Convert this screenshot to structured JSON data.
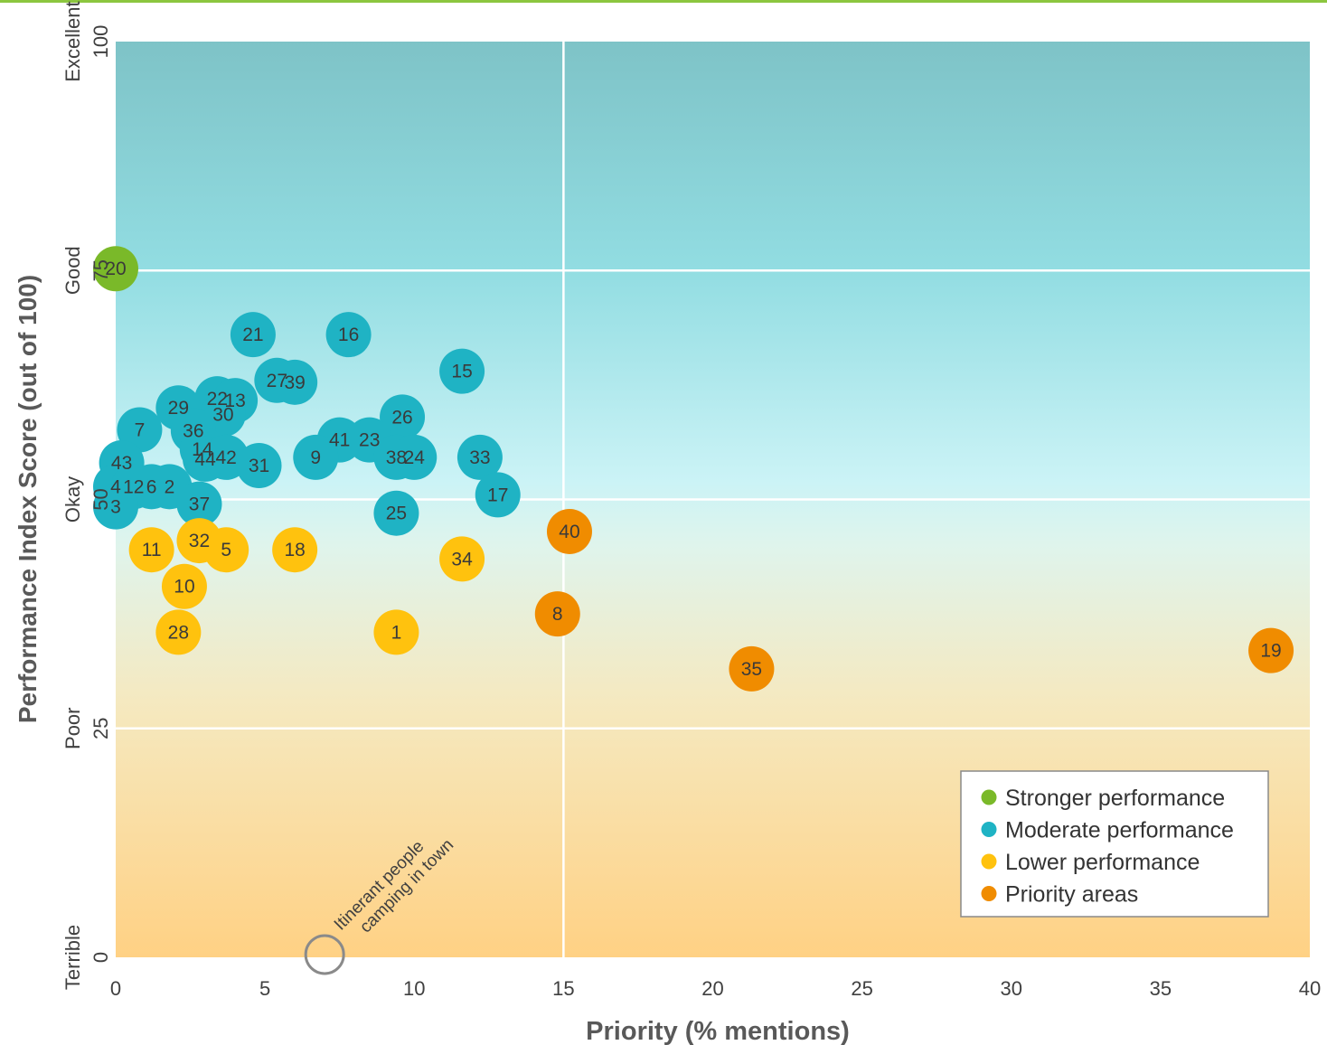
{
  "colors": {
    "stronger": "#7ab929",
    "moderate": "#1fb3c4",
    "lower": "#ffc20e",
    "priority": "#f08c00",
    "annotation_ring": "#8a8a8a",
    "gridline": "#ffffff"
  },
  "chart_data": {
    "type": "scatter",
    "xlabel": "Priority (% mentions)",
    "ylabel": "Performance Index Score (out of 100)",
    "xlim": [
      0,
      40
    ],
    "ylim": [
      0,
      100
    ],
    "x_ticks": [
      "0",
      "5",
      "10",
      "15",
      "20",
      "25",
      "30",
      "35",
      "40"
    ],
    "y_ticks": [
      {
        "value": 0,
        "num": "0",
        "word": "Terrible"
      },
      {
        "value": 25,
        "num": "25",
        "word": "Poor"
      },
      {
        "value": 50,
        "num": "50",
        "word": "Okay"
      },
      {
        "value": 75,
        "num": "75",
        "word": "Good"
      },
      {
        "value": 100,
        "num": "100",
        "word": "Excellent"
      }
    ],
    "gridlines": {
      "x": [
        15
      ],
      "y": [
        25,
        50,
        75
      ]
    },
    "legend": {
      "placement": "bottom-right",
      "items": [
        {
          "label": "Stronger performance",
          "group": "stronger"
        },
        {
          "label": "Moderate performance",
          "group": "moderate"
        },
        {
          "label": "Lower performance",
          "group": "lower"
        },
        {
          "label": "Priority areas",
          "group": "priority"
        }
      ]
    },
    "points": [
      {
        "label": "20",
        "x": 0.0,
        "y": 75.2,
        "group": "stronger"
      },
      {
        "label": "21",
        "x": 4.6,
        "y": 68.0,
        "group": "moderate"
      },
      {
        "label": "16",
        "x": 7.8,
        "y": 68.0,
        "group": "moderate"
      },
      {
        "label": "15",
        "x": 11.6,
        "y": 64.0,
        "group": "moderate"
      },
      {
        "label": "27",
        "x": 5.4,
        "y": 63.0,
        "group": "moderate"
      },
      {
        "label": "39",
        "x": 6.0,
        "y": 62.8,
        "group": "moderate"
      },
      {
        "label": "22",
        "x": 3.4,
        "y": 61.0,
        "group": "moderate"
      },
      {
        "label": "13",
        "x": 4.0,
        "y": 60.8,
        "group": "moderate"
      },
      {
        "label": "29",
        "x": 2.1,
        "y": 60.0,
        "group": "moderate"
      },
      {
        "label": "30",
        "x": 3.6,
        "y": 59.3,
        "group": "moderate"
      },
      {
        "label": "26",
        "x": 9.6,
        "y": 59.0,
        "group": "moderate"
      },
      {
        "label": "7",
        "x": 0.8,
        "y": 57.6,
        "group": "moderate"
      },
      {
        "label": "36",
        "x": 2.6,
        "y": 57.5,
        "group": "moderate"
      },
      {
        "label": "41",
        "x": 7.5,
        "y": 56.5,
        "group": "moderate"
      },
      {
        "label": "23",
        "x": 8.5,
        "y": 56.5,
        "group": "moderate"
      },
      {
        "label": "14",
        "x": 2.9,
        "y": 55.5,
        "group": "moderate"
      },
      {
        "label": "44",
        "x": 3.0,
        "y": 54.4,
        "group": "moderate"
      },
      {
        "label": "42",
        "x": 3.7,
        "y": 54.6,
        "group": "moderate"
      },
      {
        "label": "9",
        "x": 6.7,
        "y": 54.6,
        "group": "moderate"
      },
      {
        "label": "38",
        "x": 9.4,
        "y": 54.6,
        "group": "moderate"
      },
      {
        "label": "24",
        "x": 10.0,
        "y": 54.6,
        "group": "moderate"
      },
      {
        "label": "33",
        "x": 12.2,
        "y": 54.6,
        "group": "moderate"
      },
      {
        "label": "43",
        "x": 0.2,
        "y": 54.0,
        "group": "moderate"
      },
      {
        "label": "31",
        "x": 4.8,
        "y": 53.7,
        "group": "moderate"
      },
      {
        "label": "4",
        "x": 0.0,
        "y": 51.4,
        "group": "moderate"
      },
      {
        "label": "12",
        "x": 0.6,
        "y": 51.4,
        "group": "moderate"
      },
      {
        "label": "6",
        "x": 1.2,
        "y": 51.4,
        "group": "moderate"
      },
      {
        "label": "2",
        "x": 1.8,
        "y": 51.4,
        "group": "moderate"
      },
      {
        "label": "17",
        "x": 12.8,
        "y": 50.5,
        "group": "moderate"
      },
      {
        "label": "3",
        "x": 0.0,
        "y": 49.2,
        "group": "moderate"
      },
      {
        "label": "37",
        "x": 2.8,
        "y": 49.5,
        "group": "moderate"
      },
      {
        "label": "25",
        "x": 9.4,
        "y": 48.5,
        "group": "moderate"
      },
      {
        "label": "40",
        "x": 15.2,
        "y": 46.5,
        "group": "priority"
      },
      {
        "label": "32",
        "x": 2.8,
        "y": 45.5,
        "group": "lower"
      },
      {
        "label": "11",
        "x": 1.2,
        "y": 44.5,
        "group": "lower"
      },
      {
        "label": "5",
        "x": 3.7,
        "y": 44.5,
        "group": "lower"
      },
      {
        "label": "18",
        "x": 6.0,
        "y": 44.5,
        "group": "lower"
      },
      {
        "label": "34",
        "x": 11.6,
        "y": 43.5,
        "group": "lower"
      },
      {
        "label": "10",
        "x": 2.3,
        "y": 40.5,
        "group": "lower"
      },
      {
        "label": "8",
        "x": 14.8,
        "y": 37.5,
        "group": "priority"
      },
      {
        "label": "28",
        "x": 2.1,
        "y": 35.5,
        "group": "lower"
      },
      {
        "label": "1",
        "x": 9.4,
        "y": 35.5,
        "group": "lower"
      },
      {
        "label": "19",
        "x": 38.7,
        "y": 33.5,
        "group": "priority"
      },
      {
        "label": "35",
        "x": 21.3,
        "y": 31.5,
        "group": "priority"
      }
    ],
    "annotation": {
      "label": "Itinerant people camping in town",
      "x": 7.0,
      "y": 0.3
    }
  }
}
